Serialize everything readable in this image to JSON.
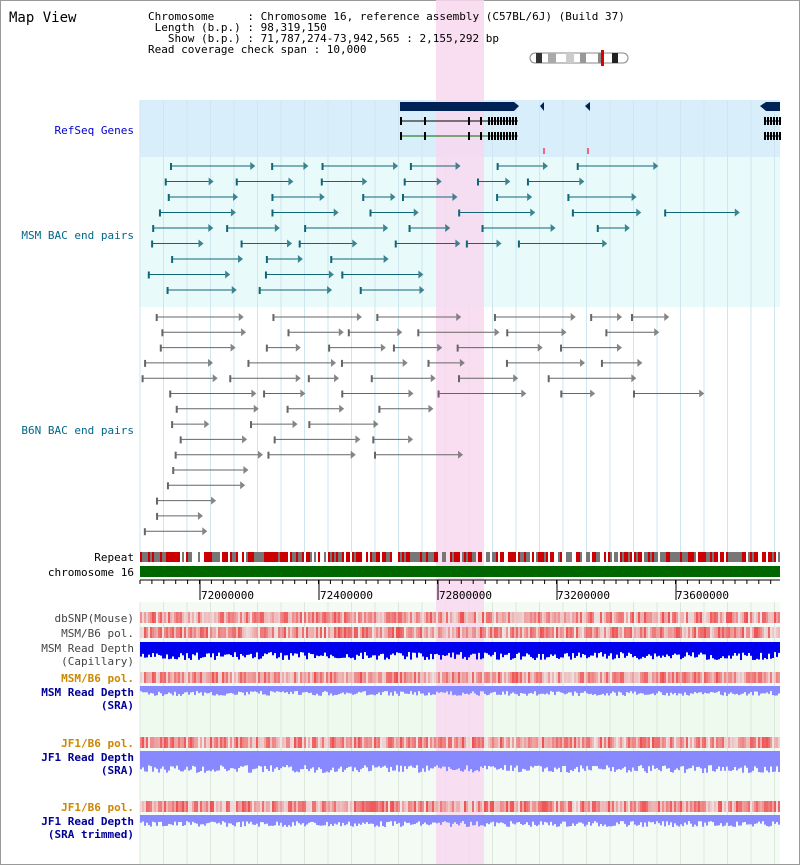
{
  "header": {
    "title": "Map View",
    "info_lines": [
      "Chromosome     : Chromosome 16, reference assembly (C57BL/6J) (Build 37)",
      " Length (b.p.) : 98,319,150",
      "   Show (b.p.) : 71,787,274-73,942,565 : 2,155,292 bp",
      "Read coverage check span : 10,000"
    ]
  },
  "tracks": {
    "refseq": "RefSeq Genes",
    "msm_bac": "MSM BAC end pairs",
    "b6n_bac": "B6N BAC end pairs",
    "repeat": "Repeat",
    "chromosome": "chromosome 16",
    "dbsnp": "dbSNP(Mouse)",
    "msm_b6_pol": "MSM/B6 pol.",
    "msm_depth_cap_1": "MSM Read Depth",
    "msm_depth_cap_2": "(Capillary)",
    "msm_b6_pol_sra": "MSM/B6 pol.",
    "msm_depth_sra_1": "MSM Read Depth",
    "msm_depth_sra_2": "(SRA)",
    "jf1_b6_pol": "JF1/B6 pol.",
    "jf1_depth_sra_1": "JF1 Read Depth",
    "jf1_depth_sra_2": "(SRA)",
    "jf1_b6_pol_trim": "JF1/B6 pol.",
    "jf1_depth_trim_1": "JF1 Read Depth",
    "jf1_depth_trim_2": "(SRA trimmed)"
  },
  "scale": {
    "ticks": [
      "72000000",
      "72400000",
      "72800000",
      "73200000",
      "73600000"
    ]
  },
  "colors": {
    "refseq_bg": "#d8eefa",
    "msm_bg": "#e8fafa",
    "lower_bg": "#eefaee",
    "highlight": "#f8d8f0",
    "refseq_gene": "#002255",
    "msm_pair": "#116677",
    "b6n_pair": "#666666",
    "repeat_red": "#cc0000",
    "repeat_gray": "#777777",
    "chromosome": "#006600",
    "depth_blue": "#0000ee",
    "depth_light": "#8888ff",
    "pol_red": "#ee3333",
    "orange": "#cc8800",
    "navy": "#000099",
    "teal": "#006688"
  }
}
